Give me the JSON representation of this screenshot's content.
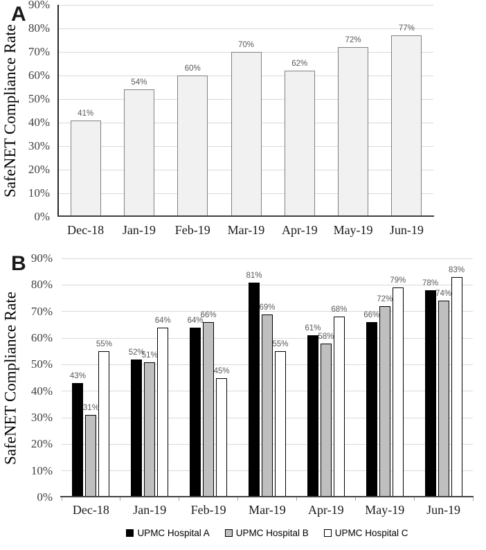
{
  "figure": {
    "panel_a_letter": "A",
    "panel_b_letter": "B"
  },
  "colors": {
    "grid": "#d9d9d9",
    "x_axis_line": "#404040",
    "y_axis_line": "#262626",
    "tick_label_text": "#404040",
    "category_label_text": "#1a1a1a",
    "data_label_text": "#595959",
    "panel_letter_text": "#1a1a1a",
    "legend_text": "#000000",
    "axis_tick_mark": "#a6a6a6",
    "panel_a_bar_fill": "#f1f1f1",
    "panel_a_bar_stroke": "#808080"
  },
  "chart_data": [
    {
      "panel": "A",
      "type": "bar",
      "title": "",
      "xlabel": "",
      "ylabel": "SafeNET Compliance Rate",
      "categories": [
        "Dec-18",
        "Jan-19",
        "Feb-19",
        "Mar-19",
        "Apr-19",
        "May-19",
        "Jun-19"
      ],
      "series": [
        {
          "name": "",
          "values": [
            41,
            54,
            60,
            70,
            62,
            72,
            77
          ],
          "fill": "#f1f1f1",
          "stroke": "#808080"
        }
      ],
      "data_labels": [
        "41%",
        "54%",
        "60%",
        "70%",
        "62%",
        "72%",
        "77%"
      ],
      "ylim": [
        0,
        90
      ],
      "ytick_step": 10,
      "ytick_suffix": "%",
      "grid": true,
      "legend": false
    },
    {
      "panel": "B",
      "type": "bar",
      "title": "",
      "xlabel": "",
      "ylabel": "SafeNET Compliance Rate",
      "categories": [
        "Dec-18",
        "Jan-19",
        "Feb-19",
        "Mar-19",
        "Apr-19",
        "May-19",
        "Jun-19"
      ],
      "series": [
        {
          "name": "UPMC Hospital A",
          "values": [
            43,
            52,
            64,
            81,
            61,
            66,
            78
          ],
          "fill": "#000000",
          "stroke": "#000000"
        },
        {
          "name": "UPMC Hospital B",
          "values": [
            31,
            51,
            66,
            69,
            58,
            72,
            74
          ],
          "fill": "#bfbfbf",
          "stroke": "#000000"
        },
        {
          "name": "UPMC Hospital C",
          "values": [
            55,
            64,
            45,
            55,
            68,
            79,
            83
          ],
          "fill": "#ffffff",
          "stroke": "#000000"
        }
      ],
      "ylim": [
        0,
        90
      ],
      "ytick_step": 10,
      "ytick_suffix": "%",
      "grid": true,
      "legend": true,
      "legend_position": "bottom",
      "data_labels": true
    }
  ]
}
